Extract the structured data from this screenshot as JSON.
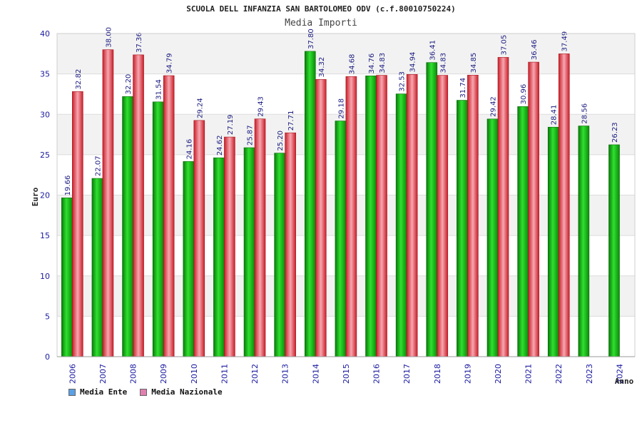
{
  "chart_data": {
    "type": "bar",
    "title": "SCUOLA DELL INFANZIA SAN BARTOLOMEO ODV (c.f.80010750224)",
    "subtitle": "Media Importi",
    "xlabel": "Anno",
    "ylabel": "Euro",
    "ylim": [
      0,
      40
    ],
    "yticks": [
      0,
      5,
      10,
      15,
      20,
      25,
      30,
      35,
      40
    ],
    "categories": [
      "2006",
      "2007",
      "2008",
      "2009",
      "2010",
      "2011",
      "2012",
      "2013",
      "2014",
      "2015",
      "2016",
      "2017",
      "2018",
      "2019",
      "2020",
      "2021",
      "2022",
      "2023",
      "2024"
    ],
    "series": [
      {
        "name": "Media Ente",
        "color": "#18b818",
        "values": [
          19.66,
          22.07,
          32.2,
          31.54,
          24.16,
          24.62,
          25.87,
          25.2,
          37.8,
          29.18,
          34.76,
          32.53,
          36.41,
          31.74,
          29.42,
          30.96,
          28.41,
          28.56,
          26.23
        ],
        "labels": [
          "19.66",
          "22.07",
          "32.20",
          "31.54",
          "24.16",
          "24.62",
          "25.87",
          "25.20",
          "37.80",
          "29.18",
          "34.76",
          "32.53",
          "36.41",
          "31.74",
          "29.42",
          "30.96",
          "28.41",
          "28.56",
          "26.23"
        ]
      },
      {
        "name": "Media Nazionale",
        "color": "#e8303a",
        "values": [
          32.82,
          38.0,
          37.36,
          34.79,
          29.24,
          27.19,
          29.43,
          27.71,
          34.32,
          34.68,
          34.83,
          34.94,
          34.83,
          34.85,
          37.05,
          36.46,
          37.49,
          null,
          null
        ],
        "labels": [
          "32.82",
          "38.00",
          "37.36",
          "34.79",
          "29.24",
          "27.19",
          "29.43",
          "27.71",
          "34.32",
          "34.68",
          "34.83",
          "34.94",
          "34.83",
          "34.85",
          "37.05",
          "36.46",
          "37.49",
          null,
          null
        ]
      }
    ],
    "legend": [
      {
        "label": "Media Ente",
        "swatch": "#5aa0e6"
      },
      {
        "label": "Media Nazionale",
        "swatch": "#e080b0"
      }
    ],
    "legend_position": "bottom-left",
    "grid": true
  }
}
